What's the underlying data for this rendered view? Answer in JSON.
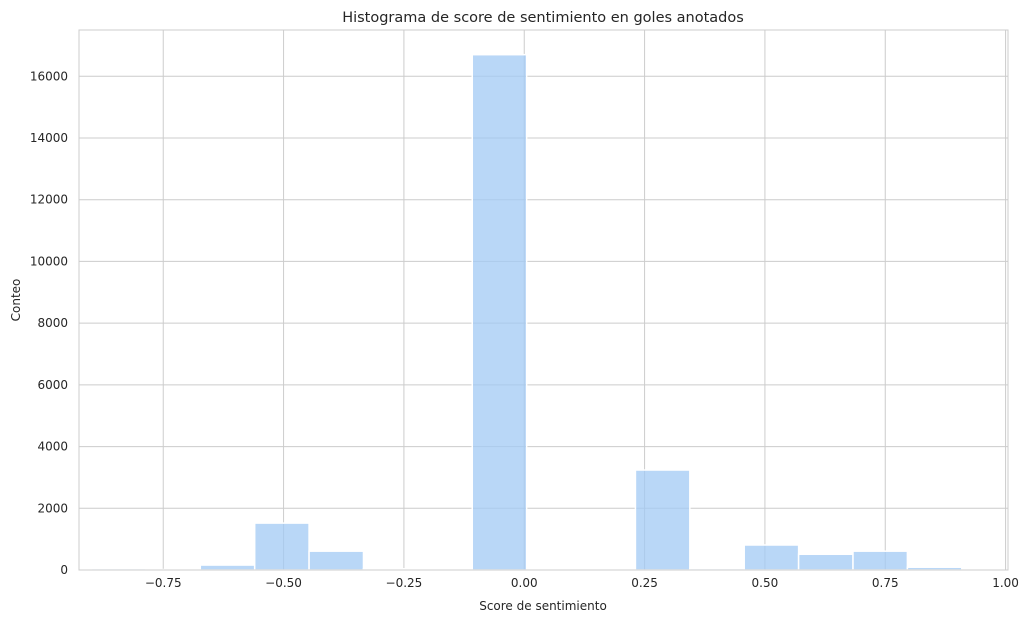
{
  "chart_data": {
    "type": "bar",
    "title": "Histograma de score de sentimiento en goles anotados",
    "xlabel": "Score de sentimiento",
    "ylabel": "Conteo",
    "xlim": [
      -0.925,
      1.005
    ],
    "ylim": [
      0,
      17500
    ],
    "grid": true,
    "bar_color": "#a1c9f4",
    "grid_color": "#cccccc",
    "x_ticks": [
      -0.75,
      -0.5,
      -0.25,
      0.0,
      0.25,
      0.5,
      0.75,
      1.0
    ],
    "x_tick_labels": [
      "−0.75",
      "−0.50",
      "−0.25",
      "0.00",
      "0.25",
      "0.50",
      "0.75",
      "1.00"
    ],
    "y_ticks": [
      0,
      2000,
      4000,
      6000,
      8000,
      10000,
      12000,
      14000,
      16000
    ],
    "y_tick_labels": [
      "0",
      "2000",
      "4000",
      "6000",
      "8000",
      "10000",
      "12000",
      "14000",
      "16000"
    ],
    "bins": [
      {
        "x0": -0.899,
        "x1": -0.786,
        "count": 50
      },
      {
        "x0": -0.786,
        "x1": -0.673,
        "count": 15
      },
      {
        "x0": -0.673,
        "x1": -0.56,
        "count": 160
      },
      {
        "x0": -0.56,
        "x1": -0.447,
        "count": 1520
      },
      {
        "x0": -0.447,
        "x1": -0.334,
        "count": 610
      },
      {
        "x0": -0.334,
        "x1": -0.221,
        "count": 40
      },
      {
        "x0": -0.221,
        "x1": -0.108,
        "count": 30
      },
      {
        "x0": -0.108,
        "x1": 0.005,
        "count": 16700
      },
      {
        "x0": 0.005,
        "x1": 0.118,
        "count": 0
      },
      {
        "x0": 0.118,
        "x1": 0.231,
        "count": 0
      },
      {
        "x0": 0.231,
        "x1": 0.344,
        "count": 3240
      },
      {
        "x0": 0.344,
        "x1": 0.457,
        "count": 50
      },
      {
        "x0": 0.457,
        "x1": 0.57,
        "count": 810
      },
      {
        "x0": 0.57,
        "x1": 0.683,
        "count": 510
      },
      {
        "x0": 0.683,
        "x1": 0.796,
        "count": 610
      },
      {
        "x0": 0.796,
        "x1": 0.909,
        "count": 90
      }
    ]
  }
}
